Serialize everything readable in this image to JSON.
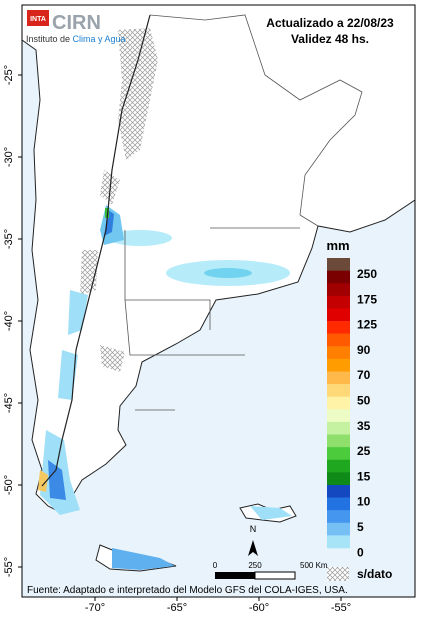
{
  "header": {
    "logo_inta": "INTA",
    "logo_cirn": "CIRN",
    "institute": "Instituto de ",
    "institute_highlight": "Clima y Agua",
    "updated": "Actualizado a 22/08/23",
    "validity": "Validez 48 hs."
  },
  "map": {
    "lat_labels": [
      "-25°",
      "-30°",
      "-35°",
      "-40°",
      "-45°",
      "-50°",
      "-55°"
    ],
    "lon_labels": [
      "-70°",
      "-65°",
      "-60°",
      "-55°"
    ]
  },
  "legend": {
    "title": "mm",
    "labels": [
      "250",
      "175",
      "125",
      "90",
      "70",
      "50",
      "35",
      "25",
      "15",
      "10",
      "5",
      "0"
    ],
    "colors": [
      "#6b4a3a",
      "#7a0000",
      "#a00000",
      "#c40000",
      "#e00000",
      "#ff2a00",
      "#ff5a00",
      "#ff8000",
      "#ff9c00",
      "#ffb84a",
      "#ffd878",
      "#fff3a8",
      "#ecfcc4",
      "#c4f2a0",
      "#8edf6c",
      "#4ccc3c",
      "#1fa81f",
      "#0f8a18",
      "#1448c0",
      "#2272e2",
      "#4596ef",
      "#76bff5",
      "#a8e4f8"
    ],
    "no_data": "s/dato"
  },
  "scale": {
    "labels": [
      "0",
      "250",
      "500 Km"
    ],
    "north": "N"
  },
  "footer": "Fuente: Adaptado e interpretado del Modelo GFS del COLA-IGES, USA."
}
